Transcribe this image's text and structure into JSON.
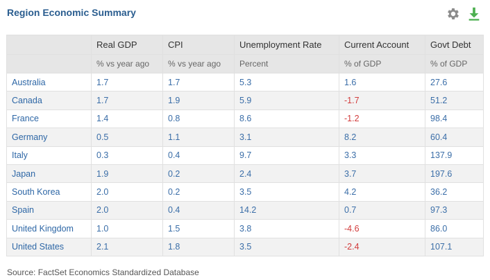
{
  "title": "Region Economic Summary",
  "icons": {
    "settings": "gear-icon",
    "download": "download-icon"
  },
  "colors": {
    "title": "#2a5d8f",
    "value": "#3b6ea8",
    "negative": "#d23c3c",
    "header_bg": "#e6e6e6",
    "alt_row": "#f2f2f2"
  },
  "columns": [
    {
      "label": "",
      "sub": ""
    },
    {
      "label": "Real GDP",
      "sub": "% vs year ago"
    },
    {
      "label": "CPI",
      "sub": "% vs year ago"
    },
    {
      "label": "Unemployment Rate",
      "sub": "Percent"
    },
    {
      "label": "Current Account",
      "sub": "% of GDP"
    },
    {
      "label": "Govt Debt",
      "sub": "% of GDP"
    }
  ],
  "rows": [
    {
      "country": "Australia",
      "gdp": "1.7",
      "cpi": "1.7",
      "unemp": "5.3",
      "account": "1.6",
      "debt": "27.6"
    },
    {
      "country": "Canada",
      "gdp": "1.7",
      "cpi": "1.9",
      "unemp": "5.9",
      "account": "-1.7",
      "debt": "51.2"
    },
    {
      "country": "France",
      "gdp": "1.4",
      "cpi": "0.8",
      "unemp": "8.6",
      "account": "-1.2",
      "debt": "98.4"
    },
    {
      "country": "Germany",
      "gdp": "0.5",
      "cpi": "1.1",
      "unemp": "3.1",
      "account": "8.2",
      "debt": "60.4"
    },
    {
      "country": "Italy",
      "gdp": "0.3",
      "cpi": "0.4",
      "unemp": "9.7",
      "account": "3.3",
      "debt": "137.9"
    },
    {
      "country": "Japan",
      "gdp": "1.9",
      "cpi": "0.2",
      "unemp": "2.4",
      "account": "3.7",
      "debt": "197.6"
    },
    {
      "country": "South Korea",
      "gdp": "2.0",
      "cpi": "0.2",
      "unemp": "3.5",
      "account": "4.2",
      "debt": "36.2"
    },
    {
      "country": "Spain",
      "gdp": "2.0",
      "cpi": "0.4",
      "unemp": "14.2",
      "account": "0.7",
      "debt": "97.3"
    },
    {
      "country": "United Kingdom",
      "gdp": "1.0",
      "cpi": "1.5",
      "unemp": "3.8",
      "account": "-4.6",
      "debt": "86.0"
    },
    {
      "country": "United States",
      "gdp": "2.1",
      "cpi": "1.8",
      "unemp": "3.5",
      "account": "-2.4",
      "debt": "107.1"
    }
  ],
  "source": "Source: FactSet Economics Standardized Database"
}
